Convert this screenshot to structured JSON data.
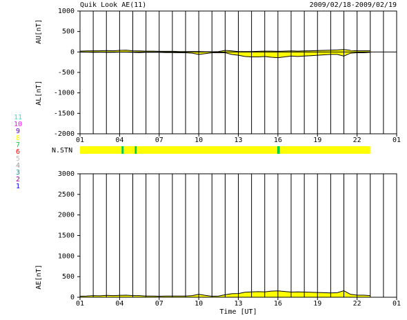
{
  "title": "Quik Look AE(11)",
  "date_range": "2009/02/18-2009/02/19",
  "chart_data": [
    {
      "type": "band",
      "ylabel_upper": "AU[nT]",
      "ylabel_lower": "AL[nT]",
      "xlim": [
        1,
        25
      ],
      "ylim": [
        -2000,
        1000
      ],
      "xticks": [
        {
          "value": 1,
          "label": "01"
        },
        {
          "value": 4,
          "label": "04"
        },
        {
          "value": 7,
          "label": "07"
        },
        10,
        13,
        16,
        19,
        22,
        {
          "value": 25,
          "label": "01"
        }
      ],
      "xgrid": [
        1,
        2,
        3,
        4,
        5,
        6,
        7,
        8,
        9,
        10,
        11,
        12,
        13,
        14,
        15,
        16,
        17,
        18,
        19,
        20,
        21,
        22,
        23,
        24,
        25
      ],
      "yticks": [
        -2000,
        -1500,
        -1000,
        -500,
        0,
        500,
        1000
      ],
      "fill": "#ffff00",
      "x": [
        1,
        1.5,
        2,
        2.5,
        3,
        3.5,
        4,
        4.5,
        5,
        5.5,
        6,
        6.5,
        7,
        7.5,
        8,
        8.5,
        9,
        9.5,
        10,
        10.5,
        11,
        11.5,
        12,
        12.5,
        13,
        13.5,
        14,
        14.5,
        15,
        15.5,
        16,
        16.5,
        17,
        17.5,
        18,
        18.5,
        19,
        19.5,
        20,
        20.5,
        21,
        21.5,
        22,
        22.5,
        23
      ],
      "series": [
        {
          "color": "#000000",
          "values": [
            20,
            25,
            30,
            30,
            35,
            30,
            40,
            45,
            30,
            25,
            20,
            20,
            15,
            15,
            15,
            10,
            10,
            10,
            10,
            5,
            5,
            10,
            40,
            25,
            10,
            10,
            10,
            15,
            20,
            20,
            15,
            20,
            25,
            20,
            25,
            30,
            35,
            40,
            45,
            50,
            60,
            40,
            30,
            30,
            30
          ]
        },
        {
          "color": "#000000",
          "values": [
            -5,
            -5,
            -10,
            -5,
            -10,
            -10,
            -5,
            -5,
            -10,
            -15,
            -10,
            -10,
            -10,
            -15,
            -15,
            -20,
            -20,
            -30,
            -60,
            -40,
            -20,
            -20,
            -20,
            -60,
            -80,
            -110,
            -120,
            -120,
            -110,
            -130,
            -140,
            -120,
            -100,
            -110,
            -100,
            -90,
            -80,
            -70,
            -60,
            -60,
            -100,
            -30,
            -20,
            -20,
            -10
          ]
        }
      ]
    },
    {
      "type": "area",
      "ylabel": "AE[nT]",
      "xlabel": "Time [UT]",
      "xlim": [
        1,
        25
      ],
      "ylim": [
        0,
        3000
      ],
      "xticks": [
        {
          "value": 1,
          "label": "01"
        },
        {
          "value": 4,
          "label": "04"
        },
        {
          "value": 7,
          "label": "07"
        },
        10,
        13,
        16,
        19,
        22,
        {
          "value": 25,
          "label": "01"
        }
      ],
      "xgrid": [
        1,
        2,
        3,
        4,
        5,
        6,
        7,
        8,
        9,
        10,
        11,
        12,
        13,
        14,
        15,
        16,
        17,
        18,
        19,
        20,
        21,
        22,
        23,
        24,
        25
      ],
      "yticks": [
        0,
        500,
        1000,
        1500,
        2000,
        2500,
        3000
      ],
      "fill": "#ffff00",
      "x": [
        1,
        1.5,
        2,
        2.5,
        3,
        3.5,
        4,
        4.5,
        5,
        5.5,
        6,
        6.5,
        7,
        7.5,
        8,
        8.5,
        9,
        9.5,
        10,
        10.5,
        11,
        11.5,
        12,
        12.5,
        13,
        13.5,
        14,
        14.5,
        15,
        15.5,
        16,
        16.5,
        17,
        17.5,
        18,
        18.5,
        19,
        19.5,
        20,
        20.5,
        21,
        21.5,
        22,
        22.5,
        23
      ],
      "series": [
        {
          "color": "#000000",
          "values": [
            25,
            30,
            40,
            35,
            45,
            40,
            45,
            50,
            40,
            40,
            30,
            30,
            25,
            30,
            30,
            30,
            30,
            40,
            70,
            45,
            25,
            30,
            60,
            85,
            90,
            120,
            130,
            135,
            130,
            150,
            155,
            140,
            125,
            130,
            125,
            120,
            115,
            110,
            105,
            110,
            160,
            70,
            50,
            50,
            40
          ]
        }
      ]
    }
  ],
  "stations": {
    "label": "N.STN",
    "legend_values": [
      11,
      10,
      9,
      8,
      7,
      6,
      5,
      4,
      3,
      2,
      1
    ],
    "legend_colors": [
      "#33dddd",
      "#ff00ff",
      "#6600cc",
      "#ffff00",
      "#00cc44",
      "#ff0000",
      "#bbbbbb",
      "#999999",
      "#009999",
      "#990099",
      "#0000ff"
    ],
    "edges": [
      1,
      4.15,
      4.3,
      5.15,
      5.3,
      15.95,
      16.15,
      23
    ],
    "values": [
      8,
      7,
      8,
      7,
      8,
      7,
      8
    ]
  }
}
